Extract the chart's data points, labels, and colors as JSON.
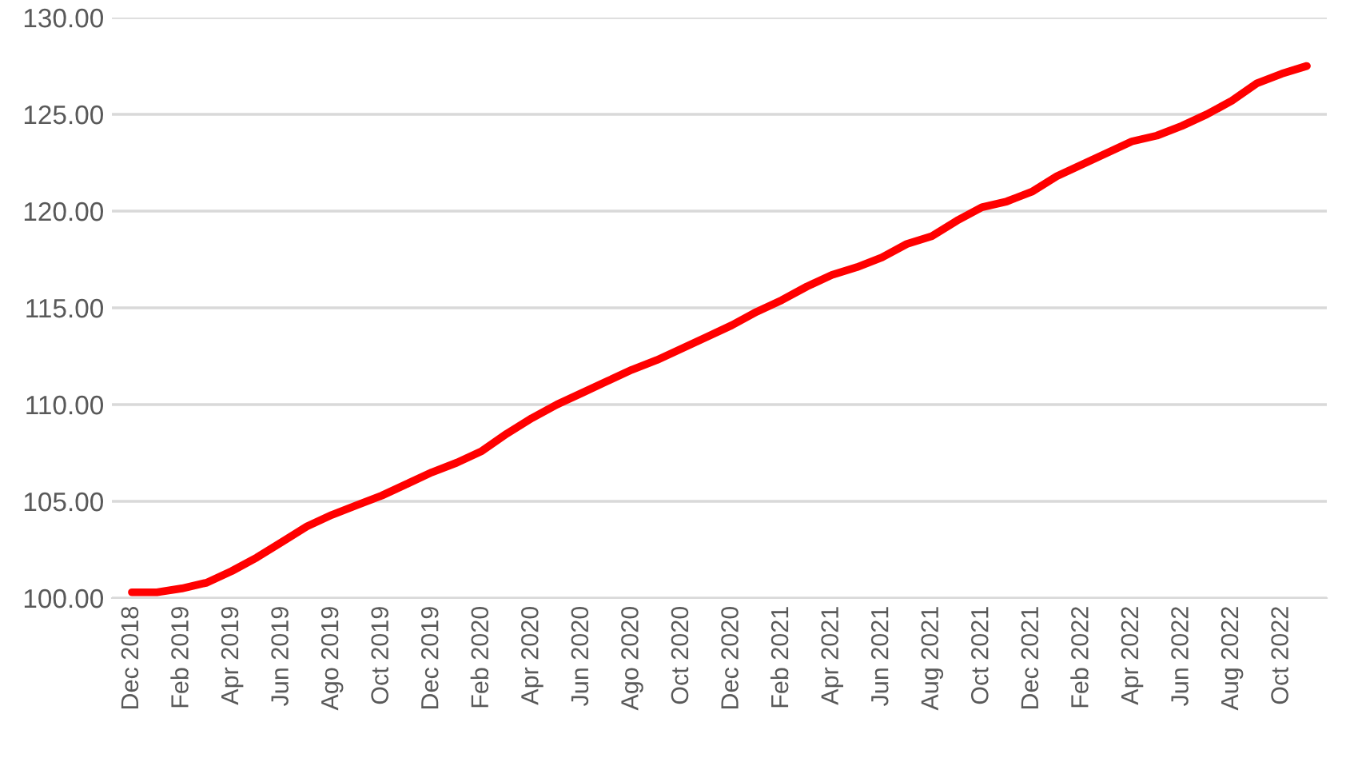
{
  "chart_data": {
    "type": "line",
    "categories": [
      "Dec 2018",
      null,
      "Feb 2019",
      null,
      "Apr 2019",
      null,
      "Jun 2019",
      null,
      "Ago 2019",
      null,
      "Oct 2019",
      null,
      "Dec 2019",
      null,
      "Feb 2020",
      null,
      "Apr 2020",
      null,
      "Jun 2020",
      null,
      "Ago 2020",
      null,
      "Oct 2020",
      null,
      "Dec 2020",
      null,
      "Feb 2021",
      null,
      "Apr 2021",
      null,
      "Jun 2021",
      null,
      "Aug 2021",
      null,
      "Oct 2021",
      null,
      "Dec 2021",
      null,
      "Feb 2022",
      null,
      "Apr 2022",
      null,
      "Jun 2022",
      null,
      "Aug 2022",
      null,
      "Oct 2022",
      null
    ],
    "series": [
      {
        "color": "#ff0000",
        "values": [
          100.3,
          100.3,
          100.5,
          100.8,
          101.4,
          102.1,
          102.9,
          103.7,
          104.3,
          104.8,
          105.3,
          105.9,
          106.5,
          107.0,
          107.6,
          108.5,
          109.3,
          110.0,
          110.6,
          111.2,
          111.8,
          112.3,
          112.9,
          113.5,
          114.1,
          114.8,
          115.4,
          116.1,
          116.7,
          117.1,
          117.6,
          118.3,
          118.7,
          119.5,
          120.2,
          120.5,
          121.0,
          121.8,
          122.4,
          123.0,
          123.6,
          123.9,
          124.4,
          125.0,
          125.7,
          126.6,
          127.1,
          127.5
        ]
      }
    ],
    "ylim": [
      100,
      130
    ],
    "yticks": [
      {
        "value": 100,
        "label": "100.00"
      },
      {
        "value": 105,
        "label": "105.00"
      },
      {
        "value": 110,
        "label": "110.00"
      },
      {
        "value": 115,
        "label": "115.00"
      },
      {
        "value": 120,
        "label": "120.00"
      },
      {
        "value": 125,
        "label": "125.00"
      },
      {
        "value": 130,
        "label": "130.00"
      }
    ],
    "grid": "y",
    "line_style": "solid"
  }
}
